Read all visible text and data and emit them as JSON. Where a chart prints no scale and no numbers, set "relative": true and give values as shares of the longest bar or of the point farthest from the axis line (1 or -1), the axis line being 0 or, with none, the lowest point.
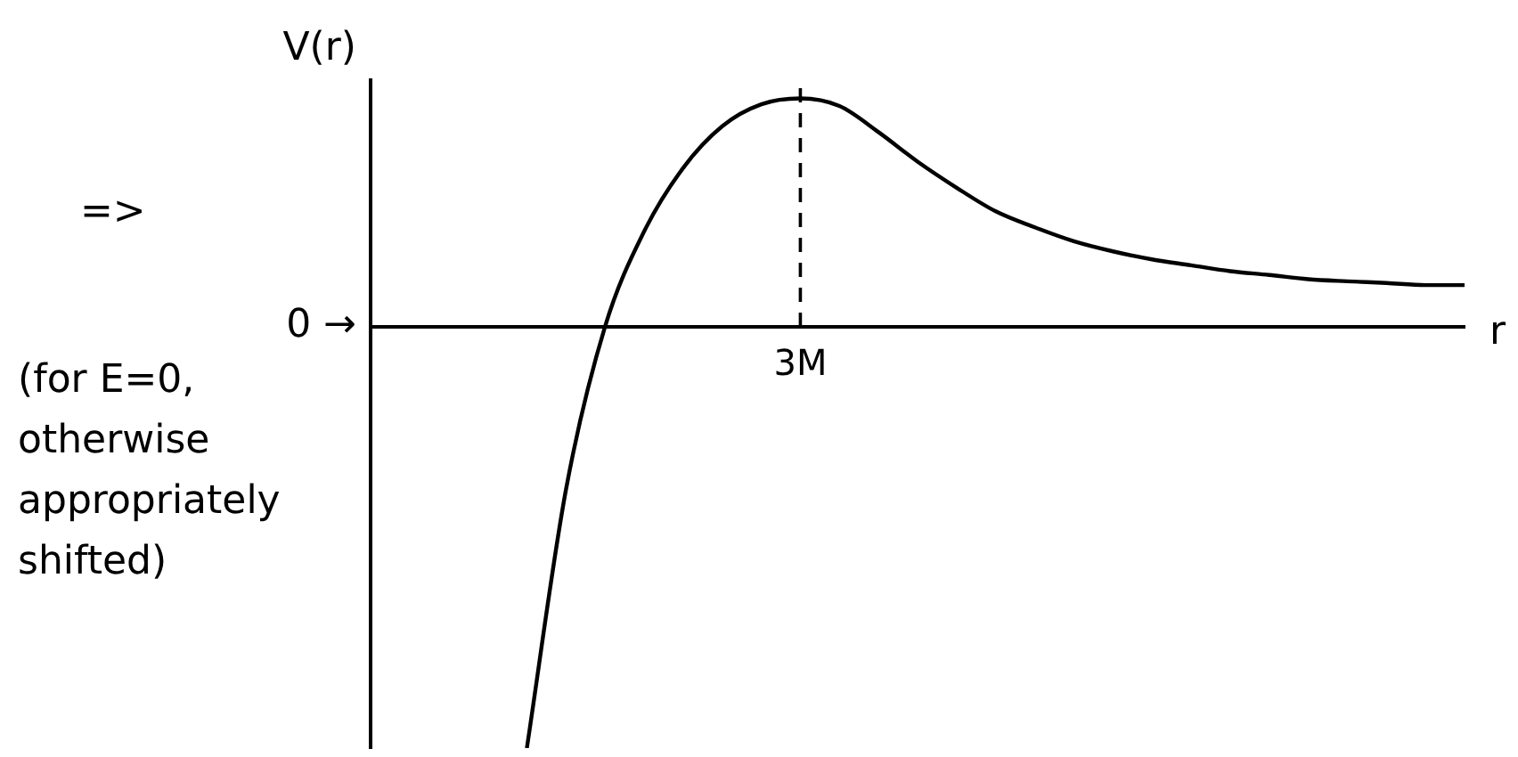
{
  "chart_data": {
    "type": "line",
    "relative": true,
    "xlabel": "r",
    "ylabel": "V(r)",
    "categories": [
      null,
      null,
      null,
      null,
      null,
      null,
      null,
      null,
      null,
      null,
      null,
      null,
      null,
      null,
      null,
      null,
      null,
      null,
      null,
      null,
      null,
      null,
      null,
      null,
      null,
      null,
      null,
      null,
      null
    ],
    "series": [
      {
        "color": "#000000",
        "values": [
          null,
          null,
          null,
          null,
          -1,
          -0.387,
          0,
          0.226,
          0.377,
          0.476,
          0.528,
          0.542,
          0.524,
          0.462,
          0.392,
          0.33,
          0.274,
          0.236,
          0.203,
          0.179,
          0.16,
          0.146,
          0.132,
          0.123,
          0.113,
          0.108,
          0.104,
          0.099,
          0.099
        ]
      }
    ],
    "annotations": [
      "=>",
      "0 →",
      "(for E=0, otherwise appropriately shifted)",
      "3M"
    ],
    "legend": false,
    "grid": false,
    "marker": "none",
    "line_style": "solid"
  }
}
